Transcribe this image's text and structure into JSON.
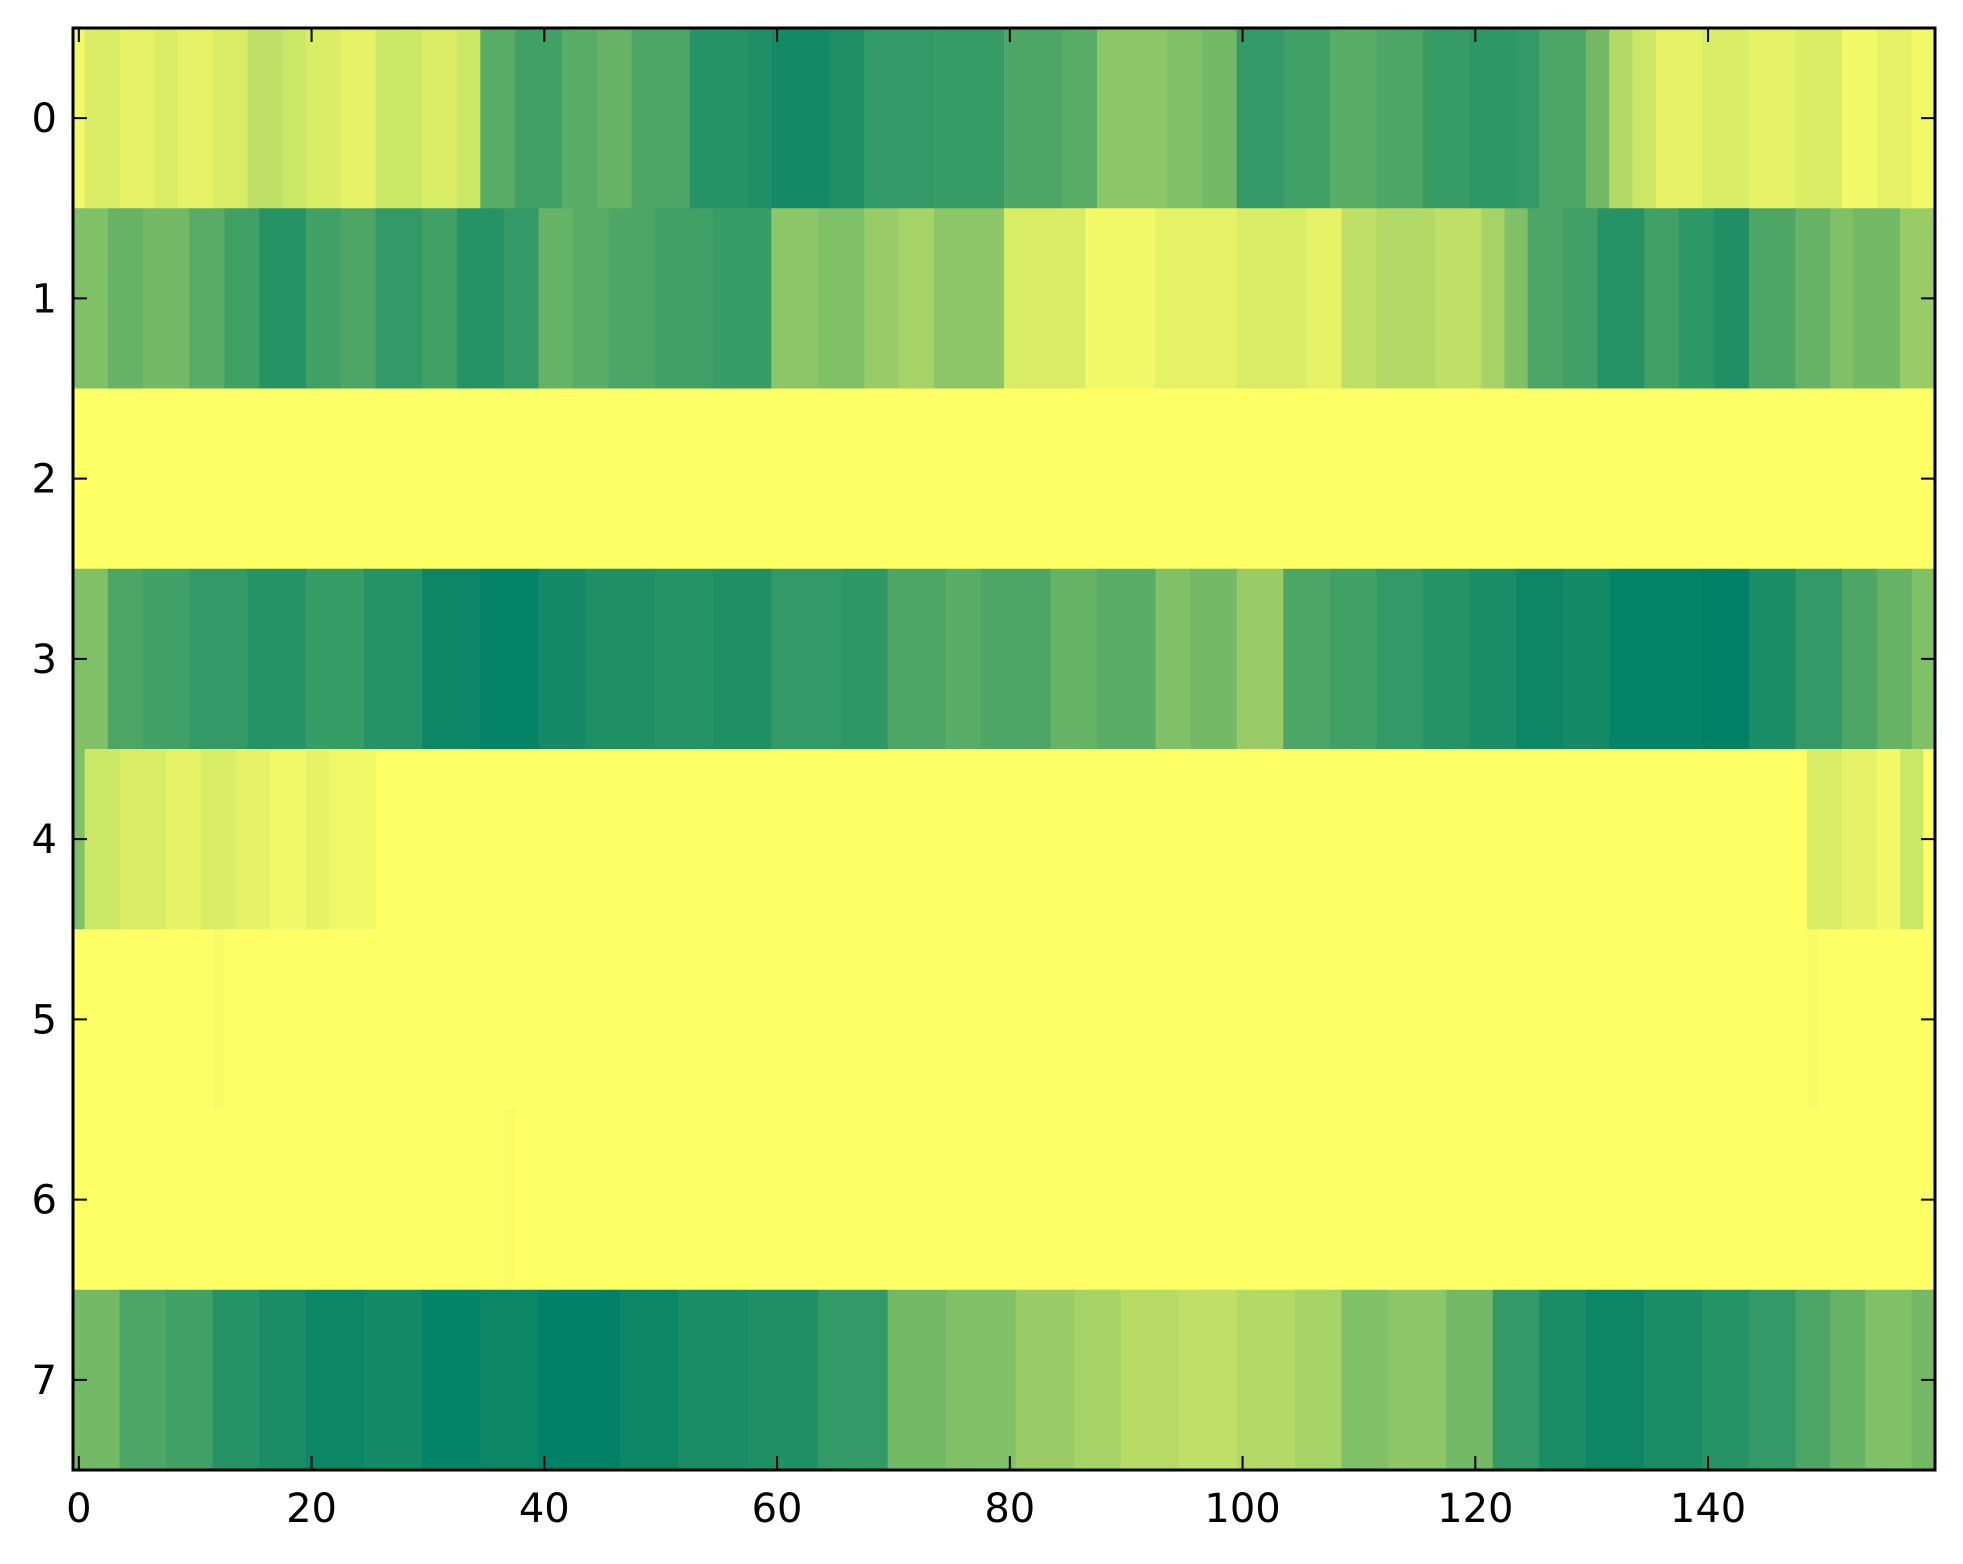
{
  "chart_data": {
    "type": "heatmap",
    "title": "",
    "xlabel": "",
    "ylabel": "",
    "colormap": "summer",
    "colormap_stops": [
      "#008066",
      "#ffff66"
    ],
    "x_ticks": [
      0,
      20,
      40,
      60,
      80,
      100,
      120,
      140
    ],
    "x_tick_labels": [
      "0",
      "20",
      "40",
      "60",
      "80",
      "100",
      "120",
      "140"
    ],
    "y_tick_labels": [
      "0",
      "1",
      "2",
      "3",
      "4",
      "5",
      "6",
      "7"
    ],
    "xlim": [
      -0.5,
      159.5
    ],
    "n_cols": 160,
    "value_range": [
      0,
      1
    ],
    "grid": false,
    "legend": "none",
    "row_segments": [
      [
        [
          0,
          0.95
        ],
        [
          1,
          0.85
        ],
        [
          4,
          0.9
        ],
        [
          7,
          0.85
        ],
        [
          9,
          0.9
        ],
        [
          12,
          0.85
        ],
        [
          15,
          0.75
        ],
        [
          18,
          0.8
        ],
        [
          20,
          0.85
        ],
        [
          23,
          0.9
        ],
        [
          26,
          0.8
        ],
        [
          30,
          0.85
        ],
        [
          33,
          0.8
        ],
        [
          35,
          0.35
        ],
        [
          38,
          0.25
        ],
        [
          42,
          0.35
        ],
        [
          45,
          0.4
        ],
        [
          48,
          0.3
        ],
        [
          53,
          0.15
        ],
        [
          58,
          0.12
        ],
        [
          60,
          0.08
        ],
        [
          65,
          0.12
        ],
        [
          68,
          0.2
        ],
        [
          74,
          0.22
        ],
        [
          80,
          0.3
        ],
        [
          85,
          0.35
        ],
        [
          88,
          0.55
        ],
        [
          94,
          0.5
        ],
        [
          97,
          0.45
        ],
        [
          100,
          0.2
        ],
        [
          104,
          0.25
        ],
        [
          108,
          0.35
        ],
        [
          112,
          0.3
        ],
        [
          116,
          0.22
        ],
        [
          120,
          0.18
        ],
        [
          124,
          0.2
        ],
        [
          126,
          0.3
        ],
        [
          130,
          0.45
        ],
        [
          132,
          0.7
        ],
        [
          134,
          0.8
        ],
        [
          136,
          0.9
        ],
        [
          140,
          0.85
        ],
        [
          144,
          0.9
        ],
        [
          148,
          0.85
        ],
        [
          152,
          0.95
        ],
        [
          155,
          0.9
        ],
        [
          158,
          0.95
        ]
      ],
      [
        [
          0,
          0.5
        ],
        [
          3,
          0.4
        ],
        [
          6,
          0.45
        ],
        [
          10,
          0.35
        ],
        [
          13,
          0.25
        ],
        [
          16,
          0.15
        ],
        [
          20,
          0.25
        ],
        [
          23,
          0.3
        ],
        [
          26,
          0.2
        ],
        [
          30,
          0.25
        ],
        [
          33,
          0.15
        ],
        [
          37,
          0.2
        ],
        [
          40,
          0.4
        ],
        [
          43,
          0.35
        ],
        [
          46,
          0.3
        ],
        [
          50,
          0.25
        ],
        [
          55,
          0.22
        ],
        [
          60,
          0.55
        ],
        [
          64,
          0.5
        ],
        [
          68,
          0.6
        ],
        [
          71,
          0.65
        ],
        [
          74,
          0.55
        ],
        [
          80,
          0.85
        ],
        [
          87,
          0.95
        ],
        [
          93,
          0.9
        ],
        [
          100,
          0.85
        ],
        [
          106,
          0.9
        ],
        [
          109,
          0.75
        ],
        [
          112,
          0.7
        ],
        [
          117,
          0.75
        ],
        [
          121,
          0.65
        ],
        [
          123,
          0.5
        ],
        [
          125,
          0.3
        ],
        [
          128,
          0.25
        ],
        [
          131,
          0.15
        ],
        [
          135,
          0.25
        ],
        [
          138,
          0.18
        ],
        [
          141,
          0.12
        ],
        [
          144,
          0.3
        ],
        [
          148,
          0.4
        ],
        [
          151,
          0.5
        ],
        [
          153,
          0.45
        ],
        [
          157,
          0.6
        ]
      ],
      [
        [
          0,
          1.0
        ]
      ],
      [
        [
          0,
          0.5
        ],
        [
          3,
          0.3
        ],
        [
          6,
          0.25
        ],
        [
          10,
          0.2
        ],
        [
          15,
          0.15
        ],
        [
          20,
          0.22
        ],
        [
          25,
          0.15
        ],
        [
          30,
          0.05
        ],
        [
          35,
          0.02
        ],
        [
          40,
          0.08
        ],
        [
          44,
          0.12
        ],
        [
          50,
          0.15
        ],
        [
          55,
          0.12
        ],
        [
          60,
          0.2
        ],
        [
          66,
          0.18
        ],
        [
          70,
          0.3
        ],
        [
          75,
          0.35
        ],
        [
          78,
          0.3
        ],
        [
          84,
          0.4
        ],
        [
          88,
          0.35
        ],
        [
          93,
          0.5
        ],
        [
          96,
          0.45
        ],
        [
          100,
          0.6
        ],
        [
          104,
          0.3
        ],
        [
          108,
          0.25
        ],
        [
          112,
          0.2
        ],
        [
          116,
          0.15
        ],
        [
          120,
          0.1
        ],
        [
          124,
          0.05
        ],
        [
          128,
          0.08
        ],
        [
          132,
          0.02
        ],
        [
          140,
          0.0
        ],
        [
          144,
          0.1
        ],
        [
          148,
          0.2
        ],
        [
          152,
          0.3
        ],
        [
          155,
          0.4
        ],
        [
          158,
          0.5
        ]
      ],
      [
        [
          0,
          0.5
        ],
        [
          1,
          0.8
        ],
        [
          4,
          0.85
        ],
        [
          8,
          0.9
        ],
        [
          11,
          0.85
        ],
        [
          14,
          0.9
        ],
        [
          17,
          0.95
        ],
        [
          20,
          0.9
        ],
        [
          22,
          0.95
        ],
        [
          26,
          1.0
        ],
        [
          149,
          0.85
        ],
        [
          152,
          0.9
        ],
        [
          155,
          0.95
        ],
        [
          157,
          0.8
        ],
        [
          159,
          1.0
        ]
      ],
      [
        [
          0,
          1.0
        ],
        [
          12,
          0.97
        ],
        [
          13,
          1.0
        ],
        [
          149,
          0.97
        ],
        [
          150,
          1.0
        ]
      ],
      [
        [
          0,
          1.0
        ],
        [
          37,
          0.98
        ],
        [
          38,
          1.0
        ]
      ],
      [
        [
          0,
          0.45
        ],
        [
          4,
          0.3
        ],
        [
          8,
          0.25
        ],
        [
          12,
          0.15
        ],
        [
          16,
          0.1
        ],
        [
          20,
          0.05
        ],
        [
          25,
          0.08
        ],
        [
          30,
          0.02
        ],
        [
          35,
          0.05
        ],
        [
          40,
          0.0
        ],
        [
          47,
          0.05
        ],
        [
          52,
          0.1
        ],
        [
          58,
          0.12
        ],
        [
          64,
          0.2
        ],
        [
          70,
          0.45
        ],
        [
          75,
          0.5
        ],
        [
          81,
          0.6
        ],
        [
          86,
          0.65
        ],
        [
          90,
          0.72
        ],
        [
          95,
          0.75
        ],
        [
          100,
          0.7
        ],
        [
          105,
          0.65
        ],
        [
          109,
          0.5
        ],
        [
          113,
          0.55
        ],
        [
          118,
          0.45
        ],
        [
          122,
          0.2
        ],
        [
          126,
          0.1
        ],
        [
          130,
          0.05
        ],
        [
          135,
          0.1
        ],
        [
          140,
          0.15
        ],
        [
          144,
          0.2
        ],
        [
          148,
          0.3
        ],
        [
          151,
          0.4
        ],
        [
          154,
          0.5
        ],
        [
          158,
          0.45
        ]
      ]
    ]
  }
}
